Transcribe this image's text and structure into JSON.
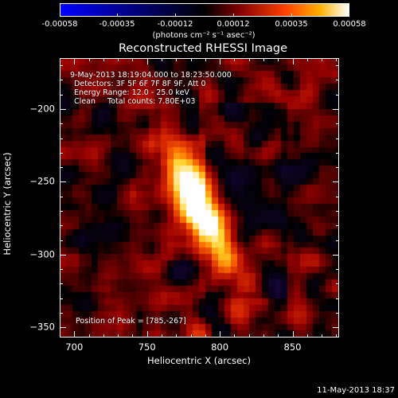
{
  "colorbar": {
    "tick_labels": [
      "-0.00058",
      "-0.00035",
      "-0.00012",
      "0.00012",
      "0.00035",
      "0.00058"
    ],
    "units": "(photons cm⁻² s⁻¹ asec⁻²)",
    "colors": {
      "low": "#0000ff",
      "mid": "#000000",
      "high_start": "#800000",
      "high_mid": "#ff4000",
      "high_peak": "#ffffff"
    }
  },
  "title": "Reconstructed RHESSI Image",
  "annotations": {
    "time_range": "9-May-2013 18:19:04.000 to 18:23:50.000",
    "detectors": "Detectors: 3F 5F 6F 7F 8F 9F, Att 0",
    "energy_range": "Energy Range: 12.0 - 25.0 keV",
    "clean_line": "Clean     Total counts: 7.80E+03",
    "peak_position": "Position of Peak = [785,-267]"
  },
  "chart_data": {
    "type": "heatmap",
    "title": "Reconstructed RHESSI Image",
    "xlabel": "Heliocentric X (arcsec)",
    "ylabel": "Heliocentric Y (arcsec)",
    "xlim": [
      690,
      882
    ],
    "ylim": [
      -357,
      -165
    ],
    "x_ticks": [
      700,
      750,
      800,
      850
    ],
    "y_ticks": [
      -200,
      -250,
      -300,
      -350
    ],
    "x_tick_labels": [
      "700",
      "750",
      "800",
      "850"
    ],
    "y_tick_labels": [
      "−200",
      "−250",
      "−300",
      "−350"
    ],
    "color_range": [
      -0.00058,
      0.00058
    ],
    "peak": {
      "x": 785,
      "y": -267
    }
  },
  "footer": {
    "date": "11-May-2013 18:37"
  }
}
